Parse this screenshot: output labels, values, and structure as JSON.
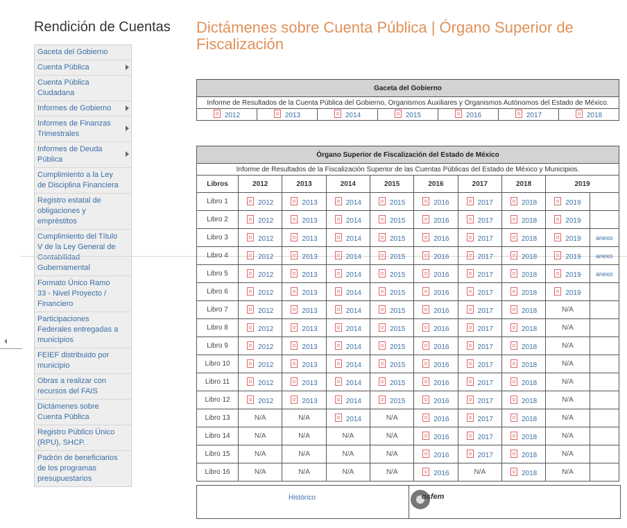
{
  "sidebar": {
    "title": "Rendición de Cuentas",
    "items": [
      {
        "label": "Gaceta del Gobierno",
        "arrow": false
      },
      {
        "label": "Cuenta Pública",
        "arrow": true
      },
      {
        "label": "Cuenta Pública Ciudadana",
        "arrow": false
      },
      {
        "label": "Informes de Gobierno",
        "arrow": true
      },
      {
        "label": "Informes de Finanzas Trimestrales",
        "arrow": true
      },
      {
        "label": "Informes de Deuda Pública",
        "arrow": true
      },
      {
        "label": "Cumplimiento a la Ley de Disciplina Financiera",
        "arrow": false
      },
      {
        "label": "Registro estatal de obligaciones y empréstitos",
        "arrow": false
      },
      {
        "label": "Cumplimiento del Título V de la Ley General de Contabilidad Gubernamental",
        "arrow": false
      },
      {
        "label": "Formato Único Ramo 33 - Nivel Proyecto / Financiero",
        "arrow": false
      },
      {
        "label": "Participaciones Federales entregadas a municipios",
        "arrow": false
      },
      {
        "label": "FEIEF distribuido por municipio",
        "arrow": false
      },
      {
        "label": "Obras a realizar con recursos del FAIS",
        "arrow": false
      },
      {
        "label": "Dictámenes sobre Cuenta Pública",
        "arrow": false
      },
      {
        "label": "Registro Público Único (RPU), SHCP.",
        "arrow": false
      },
      {
        "label": "Padrón de beneficiarios de los programas presupuestarios",
        "arrow": false
      }
    ]
  },
  "page": {
    "title": "Dictámenes sobre Cuenta Pública | Órgano Superior de Fiscalización"
  },
  "gaceta": {
    "title": "Gaceta del Gobierno",
    "subtitle": "Informe de Resultados de la Cuenta Pública del Gobierno, Organismos Auxiliares y Organismos Autónomos del Estado de México.",
    "years": [
      "2012",
      "2013",
      "2014",
      "2015",
      "2016",
      "2017",
      "2018"
    ]
  },
  "osfem": {
    "title": "Órgano Superior de Fiscalización del Estado de México",
    "subtitle": "Informe de Resultados de la Fiscalización Superior de las Cuentas Públicas del Estado de México y Municipios.",
    "col_header": "Libros",
    "years": [
      "2012",
      "2013",
      "2014",
      "2015",
      "2016",
      "2017",
      "2018",
      "2019"
    ],
    "rows": [
      {
        "libro": "Libro 1",
        "cells": [
          "2012",
          "2013",
          "2014",
          "2015",
          "2016",
          "2017",
          "2018",
          "2019"
        ],
        "extra": ""
      },
      {
        "libro": "Libro 2",
        "cells": [
          "2012",
          "2013",
          "2014",
          "2015",
          "2016",
          "2017",
          "2018",
          "2019"
        ],
        "extra": ""
      },
      {
        "libro": "Libro 3",
        "cells": [
          "2012",
          "2013",
          "2014",
          "2015",
          "2016",
          "2017",
          "2018",
          "2019"
        ],
        "extra": "anexo"
      },
      {
        "libro": "Libro 4",
        "cells": [
          "2012",
          "2013",
          "2014",
          "2015",
          "2016",
          "2017",
          "2018",
          "2019"
        ],
        "extra": "anexo"
      },
      {
        "libro": "Libro 5",
        "cells": [
          "2012",
          "2013",
          "2014",
          "2015",
          "2016",
          "2017",
          "2018",
          "2019"
        ],
        "extra": "anexo"
      },
      {
        "libro": "Libro 6",
        "cells": [
          "2012",
          "2013",
          "2014",
          "2015",
          "2016",
          "2017",
          "2018",
          "2019"
        ],
        "extra": ""
      },
      {
        "libro": "Libro 7",
        "cells": [
          "2012",
          "2013",
          "2014",
          "2015",
          "2016",
          "2017",
          "2018",
          "N/A"
        ],
        "extra": ""
      },
      {
        "libro": "Libro 8",
        "cells": [
          "2012",
          "2013",
          "2014",
          "2015",
          "2016",
          "2017",
          "2018",
          "N/A"
        ],
        "extra": ""
      },
      {
        "libro": "Libro 9",
        "cells": [
          "2012",
          "2013",
          "2014",
          "2015",
          "2016",
          "2017",
          "2018",
          "N/A"
        ],
        "extra": ""
      },
      {
        "libro": "Libro 10",
        "cells": [
          "2012",
          "2013",
          "2014",
          "2015",
          "2016",
          "2017",
          "2018",
          "N/A"
        ],
        "extra": ""
      },
      {
        "libro": "Libro 11",
        "cells": [
          "2012",
          "2013",
          "2014",
          "2015",
          "2016",
          "2017",
          "2018",
          "N/A"
        ],
        "extra": ""
      },
      {
        "libro": "Libro 12",
        "cells": [
          "2012",
          "2013",
          "2014",
          "2015",
          "2016",
          "2017",
          "2018",
          "N/A"
        ],
        "extra": ""
      },
      {
        "libro": "Libro 13",
        "cells": [
          "N/A",
          "N/A",
          "2014",
          "N/A",
          "2016",
          "2017",
          "2018",
          "N/A"
        ],
        "extra": ""
      },
      {
        "libro": "Libro 14",
        "cells": [
          "N/A",
          "N/A",
          "N/A",
          "N/A",
          "2016",
          "2017",
          "2018",
          "N/A"
        ],
        "extra": ""
      },
      {
        "libro": "Libro 15",
        "cells": [
          "N/A",
          "N/A",
          "N/A",
          "N/A",
          "2016",
          "2017",
          "2018",
          "N/A"
        ],
        "extra": ""
      },
      {
        "libro": "Libro 16",
        "cells": [
          "N/A",
          "N/A",
          "N/A",
          "N/A",
          "2016",
          "N/A",
          "2018",
          "N/A"
        ],
        "extra": ""
      }
    ]
  },
  "footer": {
    "historico": "Histórico",
    "logo_text": "osfem"
  }
}
